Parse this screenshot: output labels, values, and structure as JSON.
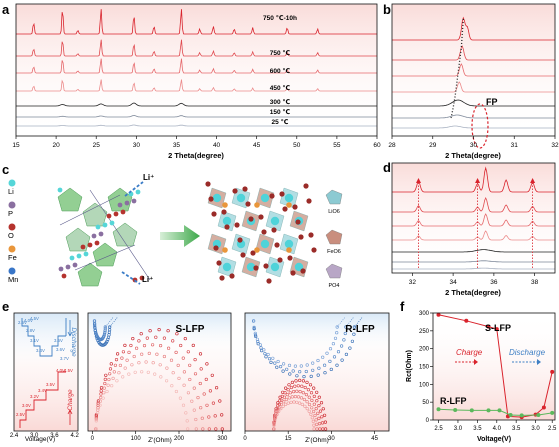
{
  "panels": {
    "a": "a",
    "b": "b",
    "c": "c",
    "d": "d",
    "e": "e",
    "f": "f"
  },
  "colors": {
    "red": "#d9232c",
    "red_light": "#ef8a8a",
    "pink": "#f4b7b2",
    "black": "#222222",
    "gray": "#8e98a8",
    "blue": "#3f7fc4",
    "blue_light": "#9cc3e8",
    "green": "#5cb85c"
  },
  "chart_data": [
    {
      "id": "a",
      "type": "line",
      "xlabel": "2 Theta(degree)",
      "ylabel": "",
      "xlim": [
        15,
        60
      ],
      "x_ticks": [
        15,
        20,
        25,
        30,
        35,
        40,
        45,
        50,
        55,
        60
      ],
      "grid": false,
      "series": [
        {
          "name": "750 ℃-10h",
          "color": "#d9232c"
        },
        {
          "name": "750 ℃",
          "color": "#e04a4f"
        },
        {
          "name": "600 ℃",
          "color": "#e66a6d"
        },
        {
          "name": "450 ℃",
          "color": "#ec8c8c"
        },
        {
          "name": "300 ℃",
          "color": "#222222"
        },
        {
          "name": "150 ℃",
          "color": "#7e8899"
        },
        {
          "name": "25 ℃",
          "color": "#a9b2c2"
        }
      ],
      "peaks_2theta": [
        17.2,
        20.8,
        22.7,
        25.6,
        29.7,
        32.2,
        35.6,
        37.9,
        39.6,
        42.2,
        44.5,
        48.8,
        52.6
      ]
    },
    {
      "id": "b",
      "type": "line",
      "xlabel": "2 Theta(degree)",
      "xlim": [
        28,
        32
      ],
      "x_ticks": [
        28,
        29,
        30,
        31,
        32
      ],
      "annotation": "FP",
      "peak_shift": "29.5 → 29.8"
    },
    {
      "id": "d",
      "type": "line",
      "xlabel": "2 Theta(degree)",
      "xlim": [
        31,
        39
      ],
      "x_ticks": [
        32,
        34,
        36,
        38
      ],
      "peaks_2theta": [
        32.3,
        35.2,
        35.6,
        36.6,
        37.9
      ]
    },
    {
      "id": "e1",
      "type": "line",
      "ylabel": "Voltage(V)",
      "xlim": [
        2.4,
        4.3
      ],
      "x_ticks": [
        2.4,
        3.0,
        3.6,
        4.2
      ],
      "x_tick_labels": [
        "2.4",
        "3.0",
        "3.6",
        "4.2"
      ],
      "labels_discharge": [
        "2.5V",
        "2.8V",
        "3.1V",
        "3.4V",
        "3.6V",
        "3.6V",
        "3.7V",
        "4.0V",
        "4.5V"
      ],
      "labels_charge": [
        "2.5V",
        "3.0V",
        "3.2V",
        "3.4V",
        "3.5V",
        "4.0V",
        "4.5V"
      ],
      "discharge_label": "Discharge",
      "charge_label": "Charge"
    },
    {
      "id": "e2",
      "type": "scatter",
      "title": "S-LFP",
      "xlabel": "Z'(Ohm)",
      "xlim": [
        -10,
        320
      ],
      "x_ticks": [
        0,
        100,
        200,
        300
      ],
      "semicircles": [
        {
          "group": "charge",
          "start": 8,
          "end": 300,
          "height_frac": 0.92
        },
        {
          "group": "charge",
          "start": 8,
          "end": 285,
          "height_frac": 0.85
        },
        {
          "group": "charge",
          "start": 8,
          "end": 270,
          "height_frac": 0.78
        },
        {
          "group": "charge",
          "start": 8,
          "end": 255,
          "height_frac": 0.7
        },
        {
          "group": "charge",
          "start": 8,
          "end": 240,
          "height_frac": 0.62
        },
        {
          "group": "charge",
          "start": 8,
          "end": 220,
          "height_frac": 0.53
        },
        {
          "group": "discharge",
          "start": 5,
          "end": 40,
          "height_frac": 0.3
        },
        {
          "group": "discharge",
          "start": 5,
          "end": 30,
          "height_frac": 0.22
        }
      ]
    },
    {
      "id": "e3",
      "type": "scatter",
      "title": "R-LFP",
      "xlabel": "Z'(Ohm)",
      "xlim": [
        0,
        50
      ],
      "x_ticks": [
        0,
        15,
        30,
        45
      ],
      "semicircles": [
        {
          "group": "charge",
          "start": 10,
          "end": 28,
          "height_frac": 0.45
        },
        {
          "group": "charge",
          "start": 10,
          "end": 27,
          "height_frac": 0.4
        },
        {
          "group": "charge",
          "start": 10,
          "end": 26,
          "height_frac": 0.35
        },
        {
          "group": "charge",
          "start": 10,
          "end": 25,
          "height_frac": 0.3
        },
        {
          "group": "charge",
          "start": 10,
          "end": 24,
          "height_frac": 0.25
        },
        {
          "group": "discharge",
          "start": 3,
          "end": 38,
          "height_frac": 0.75
        },
        {
          "group": "discharge",
          "start": 3,
          "end": 35,
          "height_frac": 0.68
        },
        {
          "group": "discharge",
          "start": 3,
          "end": 32,
          "height_frac": 0.6
        }
      ]
    },
    {
      "id": "f",
      "type": "line",
      "xlabel": "Voltage(V)",
      "ylabel": "Rct(Ohm)",
      "xlim": [
        2.4,
        4.6
      ],
      "ylim": [
        0,
        300
      ],
      "x_ticks": [
        2.5,
        3.0,
        3.5,
        4.0,
        3.5,
        3.0,
        2.5
      ],
      "y_ticks": [
        0,
        50,
        100,
        150,
        200,
        250,
        300
      ],
      "grid": false,
      "series": [
        {
          "name": "S-LFP",
          "color": "#d9232c",
          "points": [
            [
              2.5,
              295
            ],
            [
              3.0,
              278
            ],
            [
              3.4,
              262
            ],
            [
              3.55,
              255
            ],
            [
              3.75,
              10
            ],
            [
              4.0,
              8
            ],
            [
              4.25,
              15
            ],
            [
              4.4,
              35
            ],
            [
              4.55,
              135
            ]
          ]
        },
        {
          "name": "R-LFP",
          "color": "#5cb85c",
          "points": [
            [
              2.5,
              30
            ],
            [
              2.8,
              28
            ],
            [
              3.1,
              27
            ],
            [
              3.4,
              27
            ],
            [
              3.6,
              27
            ],
            [
              3.8,
              14
            ],
            [
              4.0,
              13
            ],
            [
              4.3,
              14
            ],
            [
              4.55,
              20
            ]
          ]
        }
      ],
      "annotations": {
        "charge": "Charge",
        "discharge": "Discharge"
      }
    }
  ],
  "panel_a_labels": [
    "750 ℃-10h",
    "750 ℃",
    "600 ℃",
    "450 ℃",
    "300 ℃",
    "150 ℃",
    "25 ℃"
  ],
  "panel_c": {
    "legend": [
      "Li",
      "P",
      "O",
      "Fe",
      "Mn"
    ],
    "legend_colors": [
      "#55d6d8",
      "#8a6fa0",
      "#b5332e",
      "#e9963b",
      "#3976c8"
    ],
    "li_arrow_top": "Li⁺",
    "li_arrow_bottom": "Li⁺",
    "polyhedra": [
      "LiO6",
      "FeO6",
      "PO4"
    ]
  }
}
